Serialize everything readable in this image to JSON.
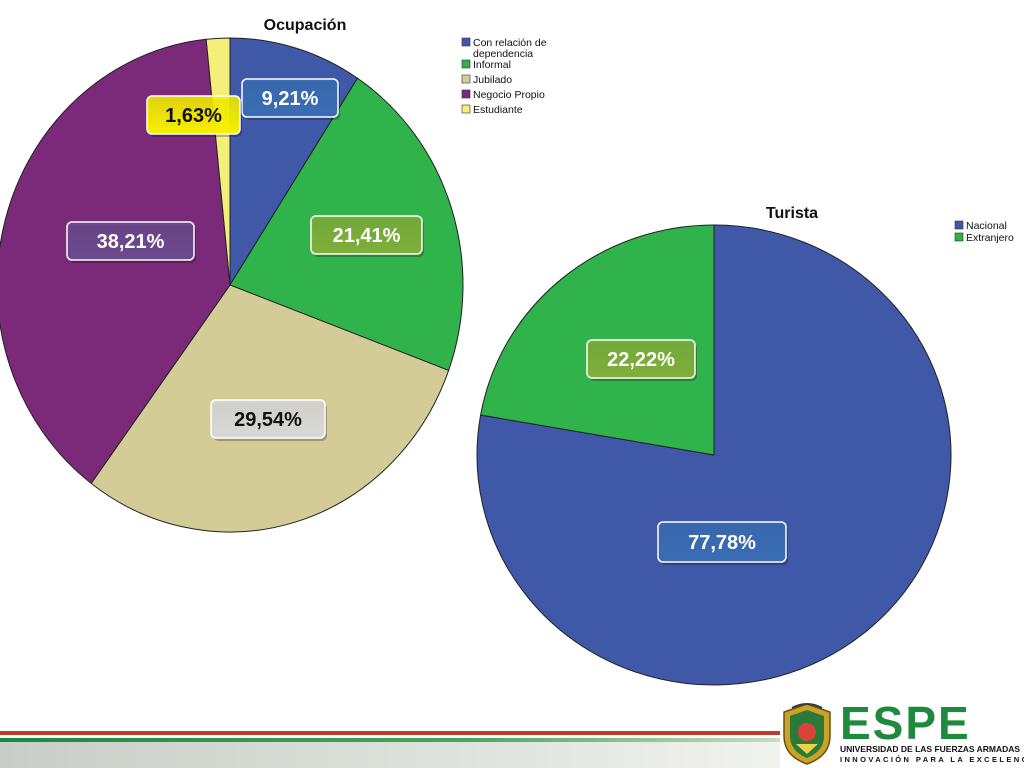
{
  "chart_data": [
    {
      "type": "pie",
      "title": "Ocupación",
      "categories": [
        "Con relación de dependencia",
        "Informal",
        "Jubilado",
        "Negocio Propio",
        "Estudiante"
      ],
      "legend": [
        "Con relación de\ndependencia",
        "Informal",
        "Jubilado",
        "Negocio Propio",
        "Estudiante"
      ],
      "values": [
        9.21,
        21.41,
        29.54,
        38.21,
        1.63
      ],
      "labels": [
        "9,21%",
        "21,41%",
        "29,54%",
        "38,21%",
        "1,63%"
      ],
      "colors": [
        "#3f58a8",
        "#2fb34a",
        "#d3cc96",
        "#7a2a78",
        "#f4ef7a"
      ],
      "label_colors": [
        "#3a6db4",
        "#7fae3a",
        "#d8d8d8",
        "#6b4a8e",
        "#f7f000"
      ],
      "label_text_colors": [
        "#ffffff",
        "#ffffff",
        "#111111",
        "#ffffff",
        "#111111"
      ],
      "legend_position": "top-right"
    },
    {
      "type": "pie",
      "title": "Turista",
      "categories": [
        "Nacional",
        "Extranjero"
      ],
      "legend": [
        "Nacional",
        "Extranjero"
      ],
      "values": [
        77.78,
        22.22
      ],
      "labels": [
        "77,78%",
        "22,22%"
      ],
      "colors": [
        "#3f58a8",
        "#2fb34a"
      ],
      "label_colors": [
        "#3a6db4",
        "#7fae3a"
      ],
      "label_text_colors": [
        "#ffffff",
        "#ffffff"
      ],
      "legend_position": "top-right"
    }
  ],
  "footer": {
    "logo_word": "ESPE",
    "university": "UNIVERSIDAD DE LAS FUERZAS ARMADAS",
    "motto": "INNOVACIÓN PARA LA EXCELENCIA"
  }
}
